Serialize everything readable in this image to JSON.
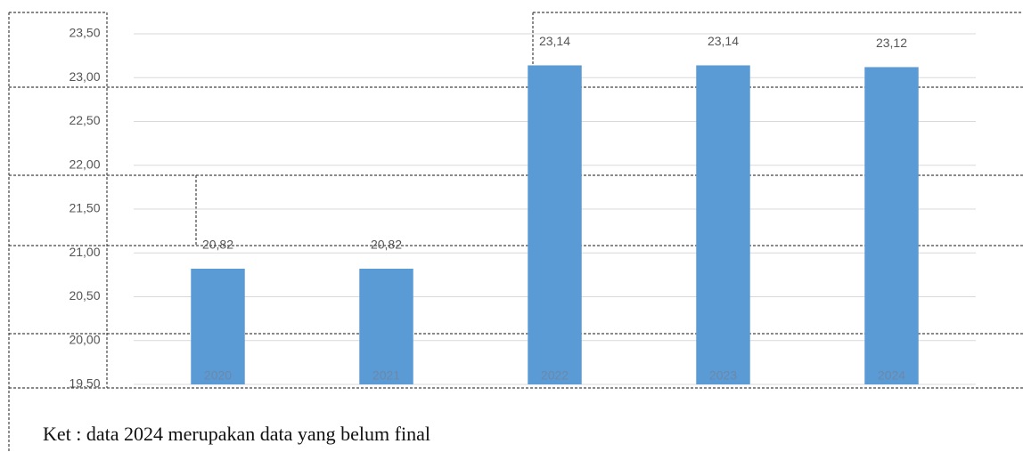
{
  "chart_data": {
    "type": "bar",
    "categories": [
      "2020",
      "2021",
      "2022",
      "2023",
      "2024"
    ],
    "values": [
      20.82,
      20.82,
      23.14,
      23.14,
      23.12
    ],
    "value_labels": [
      "20,82",
      "20,82",
      "23,14",
      "23,14",
      "23,12"
    ],
    "color": "#5b9bd5",
    "ylim": [
      19.5,
      23.5
    ],
    "yticks": [
      {
        "value": 19.5,
        "label": "19,50"
      },
      {
        "value": 20,
        "label": "20,00"
      },
      {
        "value": 20.5,
        "label": "20,50"
      },
      {
        "value": 21,
        "label": "21,00"
      },
      {
        "value": 21.5,
        "label": "21,50"
      },
      {
        "value": 22,
        "label": "22,00"
      },
      {
        "value": 22.5,
        "label": "22,50"
      },
      {
        "value": 23,
        "label": "23,00"
      },
      {
        "value": 23.5,
        "label": "23,50"
      }
    ],
    "grid": true,
    "note": "Ket :  data 2024  merupakan data yang belum final"
  }
}
